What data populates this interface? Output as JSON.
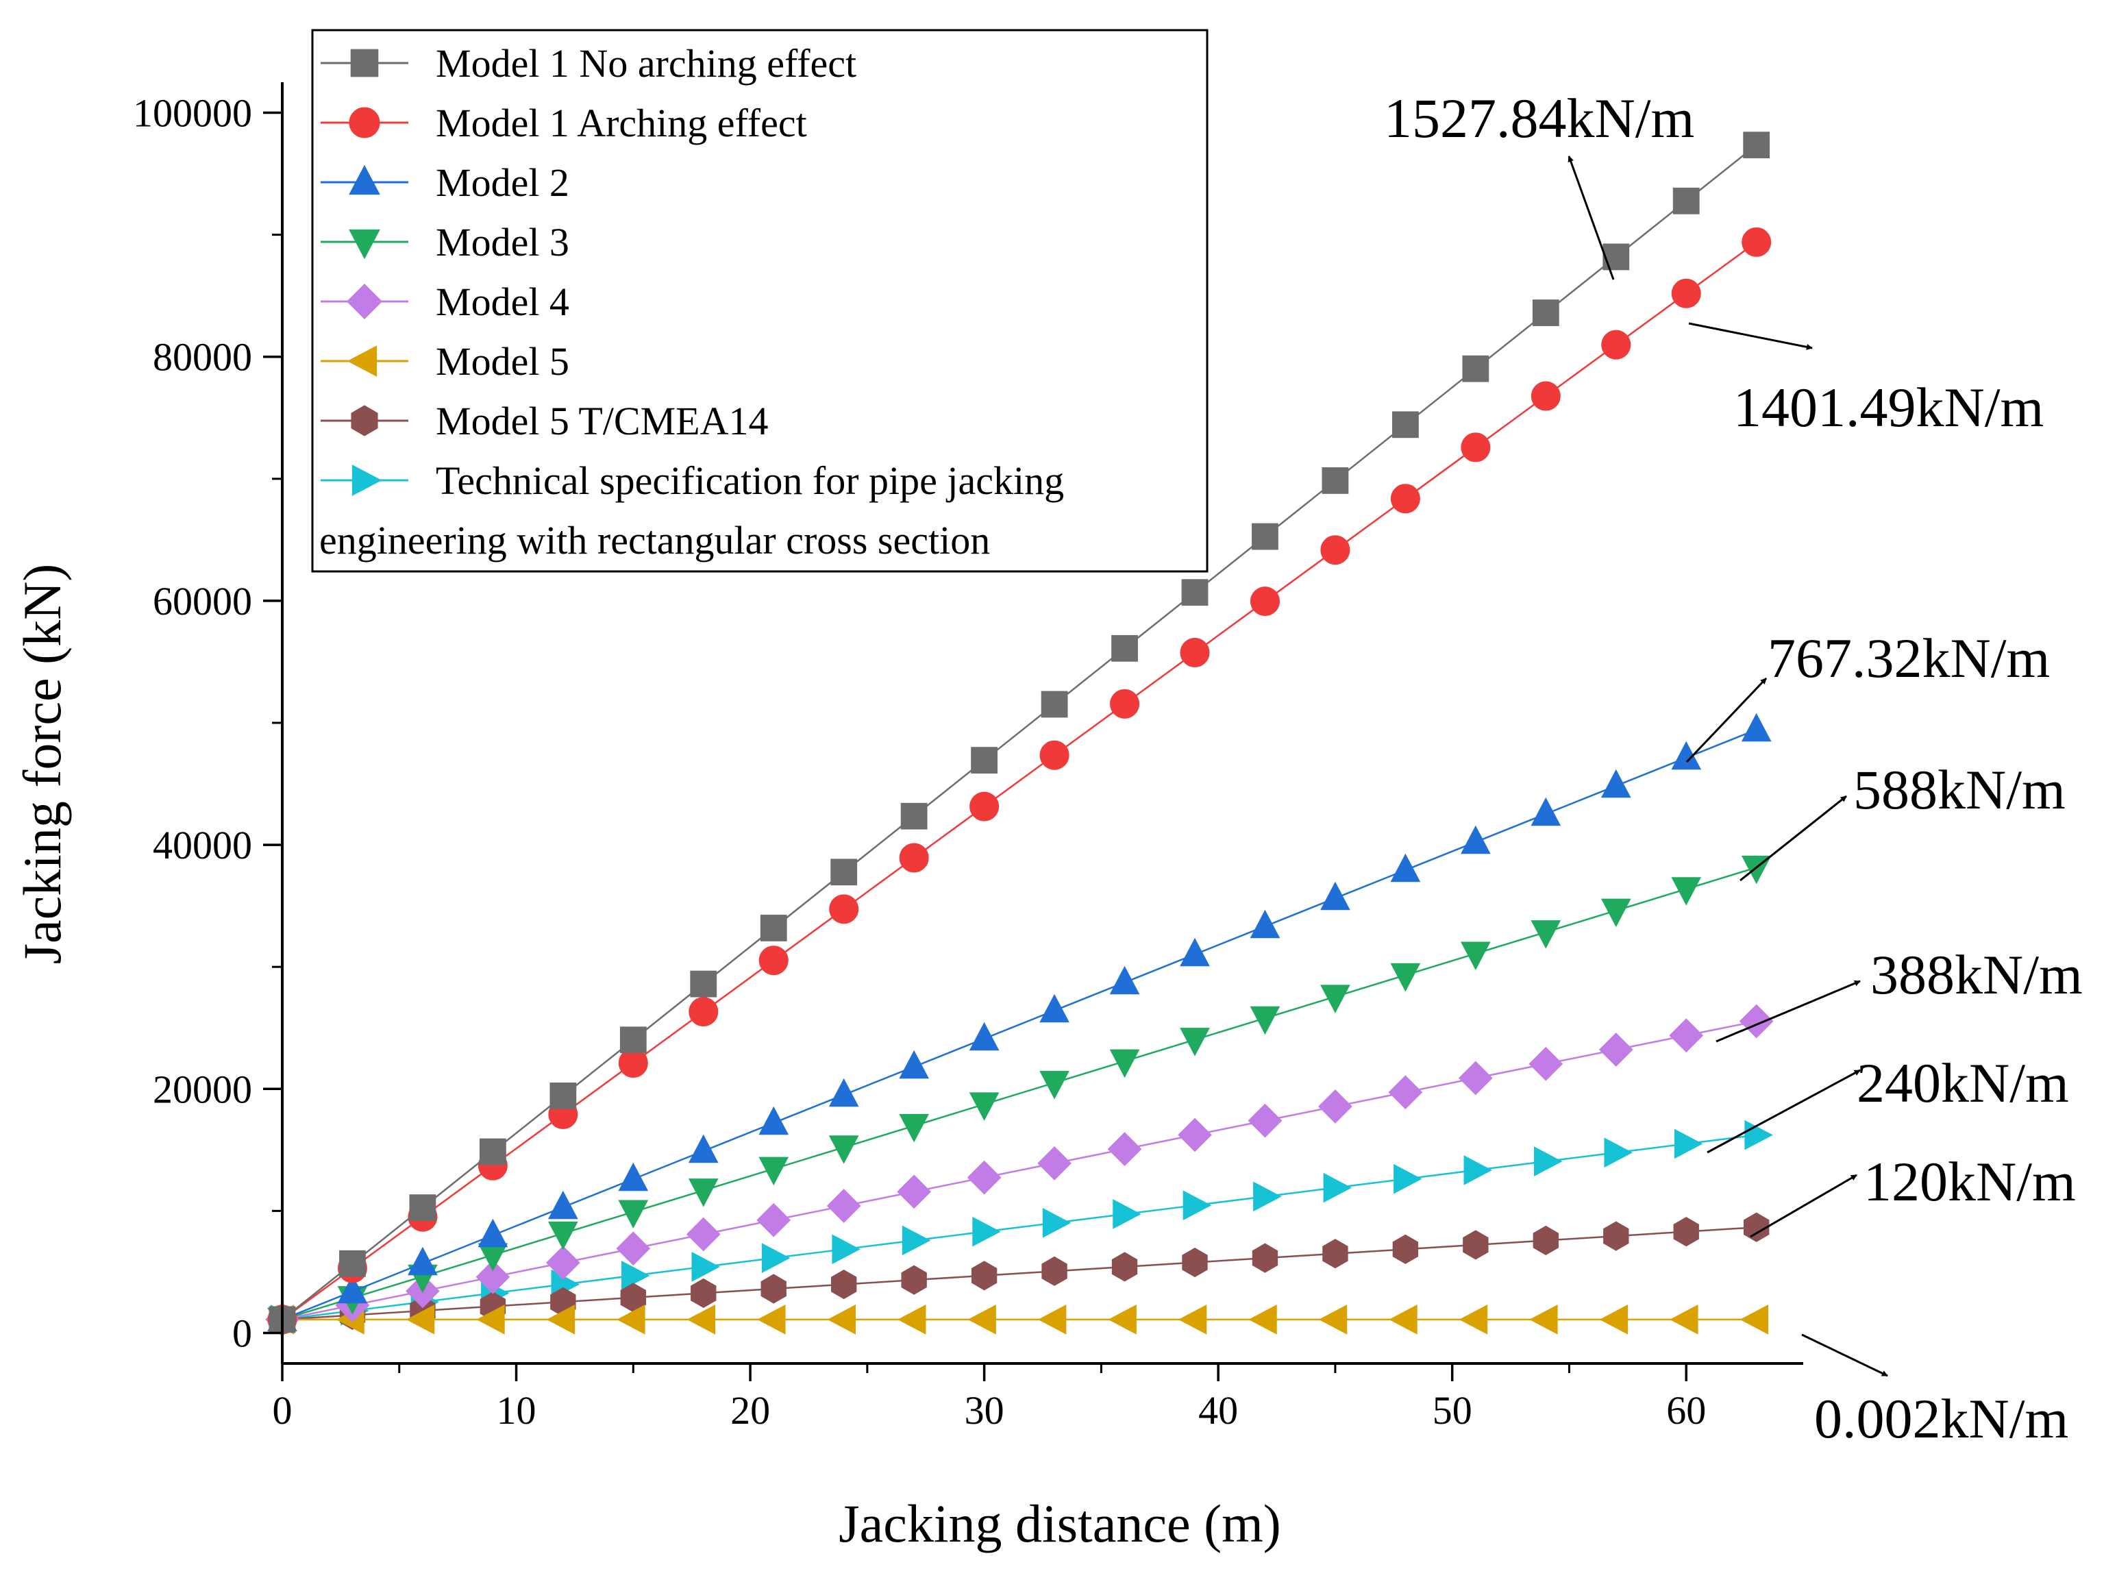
{
  "chart_data": {
    "type": "line",
    "title": "",
    "xlabel": "Jacking distance (m)",
    "ylabel": "Jacking force (kN)",
    "xlim": [
      0,
      65
    ],
    "ylim": [
      -2500,
      102500
    ],
    "xticks": [
      0,
      10,
      20,
      30,
      40,
      50,
      60
    ],
    "xtick_labels": [
      "0",
      "10",
      "20",
      "30",
      "40",
      "50",
      "60"
    ],
    "yticks": [
      0,
      20000,
      40000,
      60000,
      80000,
      100000
    ],
    "ytick_labels": [
      "0",
      "20000",
      "40000",
      "60000",
      "80000",
      "100000"
    ],
    "grid": false,
    "legend_position": "top-left",
    "x": [
      0,
      3,
      6,
      9,
      12,
      15,
      18,
      21,
      24,
      27,
      30,
      33,
      36,
      39,
      42,
      45,
      48,
      51,
      54,
      57,
      60,
      63
    ],
    "series": [
      {
        "name": "Model 1 No arching effect",
        "color": "#6d6d6d",
        "marker": "square",
        "slope": 1527.84,
        "intercept": 1100
      },
      {
        "name": "Model 1 Arching effect",
        "color": "#f03a3a",
        "marker": "circle",
        "slope": 1401.49,
        "intercept": 1100
      },
      {
        "name": "Model 2",
        "color": "#1f6fd6",
        "marker": "triangle-up",
        "slope": 767.32,
        "intercept": 1100
      },
      {
        "name": "Model 3",
        "color": "#1faa5e",
        "marker": "triangle-down",
        "slope": 588,
        "intercept": 1100
      },
      {
        "name": "Model 4",
        "color": "#c27ce6",
        "marker": "diamond",
        "slope": 388,
        "intercept": 1100
      },
      {
        "name": "Model 5",
        "color": "#d9a200",
        "marker": "triangle-left",
        "slope": 0.002,
        "intercept": 1100
      },
      {
        "name": "Model 5 T/CMEA14",
        "color": "#8b4f4f",
        "marker": "hexagon",
        "slope": 120,
        "intercept": 1100
      },
      {
        "name": "Technical specification for pipe jacking engineering with rectangular cross section",
        "legend_lines": [
          "Technical specification for pipe jacking",
          "engineering with rectangular cross section"
        ],
        "color": "#17c2d6",
        "marker": "triangle-right",
        "slope": 240,
        "intercept": 1100
      }
    ],
    "annotations": [
      {
        "text": "1527.84kN/m",
        "series": 0
      },
      {
        "text": "1401.49kN/m",
        "series": 1
      },
      {
        "text": "767.32kN/m",
        "series": 2
      },
      {
        "text": "588kN/m",
        "series": 3
      },
      {
        "text": "388kN/m",
        "series": 4
      },
      {
        "text": "240kN/m",
        "series": 7
      },
      {
        "text": "120kN/m",
        "series": 6
      },
      {
        "text": "0.002kN/m",
        "series": 5
      }
    ]
  }
}
